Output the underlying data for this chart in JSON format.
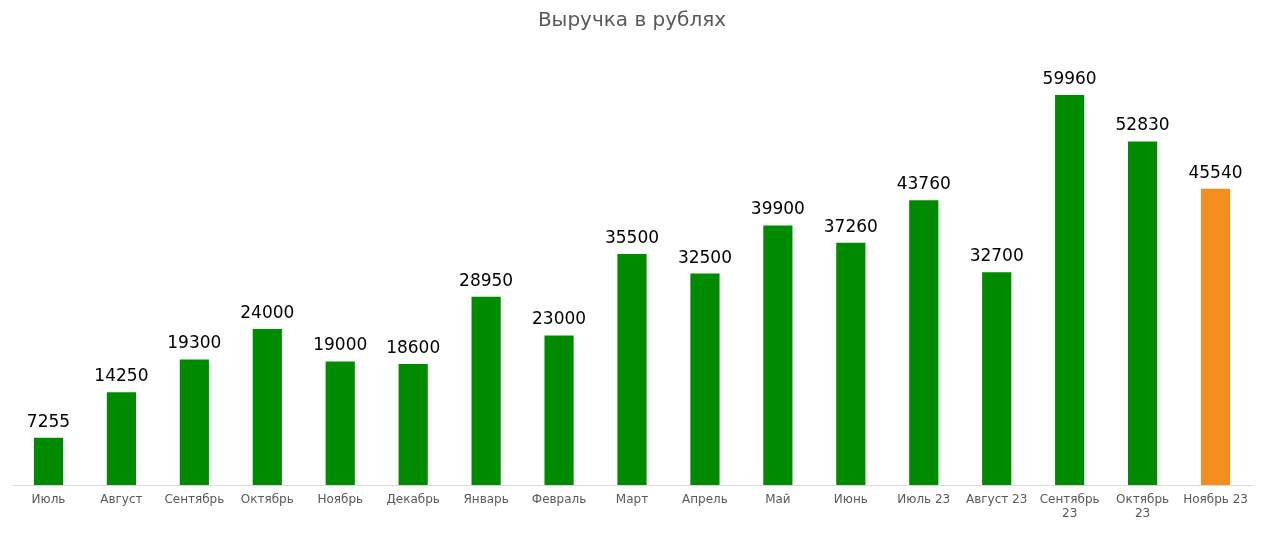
{
  "chart_data": {
    "type": "bar",
    "title": "Выручка в рублях",
    "categories": [
      "Июль",
      "Август",
      "Сентябрь",
      "Октябрь",
      "Ноябрь",
      "Декабрь",
      "Январь",
      "Февраль",
      "Март",
      "Апрель",
      "Май",
      "Июнь",
      "Июль 23",
      "Август 23",
      "Сентябрь 23",
      "Октябрь 23",
      "Ноябрь 23"
    ],
    "values": [
      7255,
      14250,
      19300,
      24000,
      19000,
      18600,
      28950,
      23000,
      35500,
      32500,
      39900,
      37260,
      43760,
      32700,
      59960,
      52830,
      45540
    ],
    "colors": [
      "#008a00",
      "#008a00",
      "#008a00",
      "#008a00",
      "#008a00",
      "#008a00",
      "#008a00",
      "#008a00",
      "#008a00",
      "#008a00",
      "#008a00",
      "#008a00",
      "#008a00",
      "#008a00",
      "#008a00",
      "#008a00",
      "#f28e1e"
    ],
    "data_labels": true
  }
}
